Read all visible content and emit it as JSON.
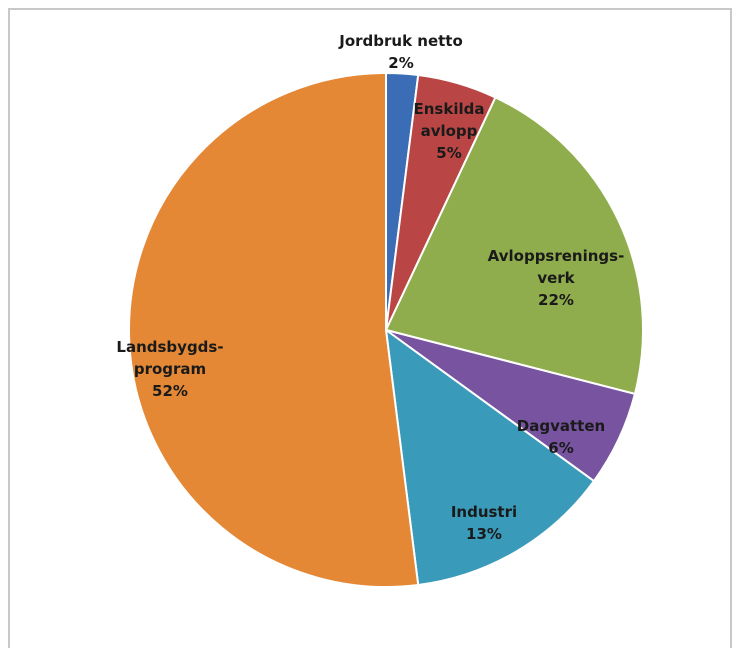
{
  "chart_data": {
    "type": "pie",
    "title": "",
    "categories": [
      "Jordbruk netto",
      "Enskilda avlopp",
      "Avloppsrenings-verk",
      "Dagvatten",
      "Industri",
      "Landsbygds-program"
    ],
    "values": [
      2,
      5,
      22,
      6,
      13,
      52
    ],
    "colors": [
      "#3a6db5",
      "#b94645",
      "#8fad4c",
      "#7753a0",
      "#3a9ab9",
      "#e48836"
    ],
    "labels": [
      {
        "lines": [
          "Jordbruk netto"
        ],
        "pct": "2%"
      },
      {
        "lines": [
          "Enskilda",
          "avlopp"
        ],
        "pct": "5%"
      },
      {
        "lines": [
          "Avloppsrenings-",
          "verk"
        ],
        "pct": "22%"
      },
      {
        "lines": [
          "Dagvatten"
        ],
        "pct": "6%"
      },
      {
        "lines": [
          "Industri"
        ],
        "pct": "13%"
      },
      {
        "lines": [
          "Landsbygds-",
          "program"
        ],
        "pct": "52%"
      }
    ],
    "start_angle": "12 o'clock",
    "direction": "clockwise",
    "legend": "none"
  }
}
